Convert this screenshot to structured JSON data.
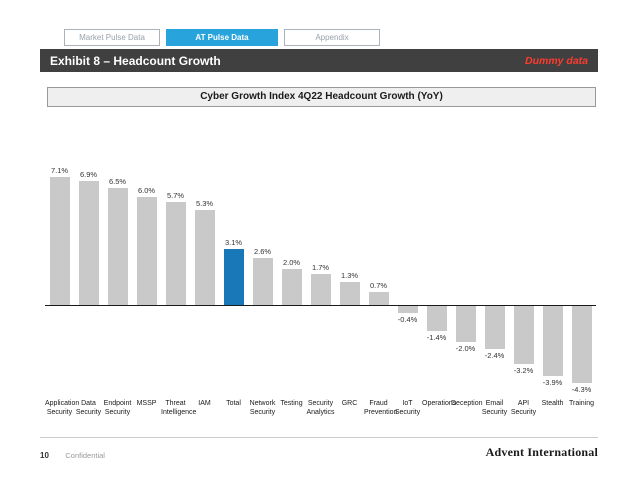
{
  "tabs": [
    {
      "label": "Market Pulse Data",
      "active": false
    },
    {
      "label": "AT Pulse Data",
      "active": true
    },
    {
      "label": "Appendix",
      "active": false
    }
  ],
  "header": {
    "title": "Exhibit 8 – Headcount Growth",
    "watermark": "Dummy data"
  },
  "chart_title": "Cyber Growth Index 4Q22 Headcount Growth (YoY)",
  "chart_data": {
    "type": "bar",
    "title": "Cyber Growth Index 4Q22 Headcount Growth (YoY)",
    "categories": [
      "Application Security",
      "Data Security",
      "Endpoint Security",
      "MSSP",
      "Threat Intelligence",
      "IAM",
      "Total",
      "Network Security",
      "Testing",
      "Security Analytics",
      "GRC",
      "Fraud Prevention",
      "IoT Security",
      "Operations",
      "Deception",
      "Email Security",
      "API Security",
      "Stealth",
      "Training"
    ],
    "values": [
      7.1,
      6.9,
      6.5,
      6.0,
      5.7,
      5.3,
      3.1,
      2.6,
      2.0,
      1.7,
      1.3,
      0.7,
      -0.4,
      -1.4,
      -2.0,
      -2.4,
      -3.2,
      -3.9,
      -4.3
    ],
    "value_format": "percent",
    "highlight_category": "Total",
    "bar_color": "#c9c9c9",
    "highlight_color": "#1878b8",
    "xlabel": "",
    "ylabel": "",
    "ylim": [
      -5,
      8
    ],
    "grid": false,
    "legend": false
  },
  "footer": {
    "page_number": "10",
    "confidential": "Confidential",
    "brand": "Advent International"
  },
  "colors": {
    "tab_active_blue": "#29a3db",
    "header_bar": "#404040",
    "watermark_red": "#ff3b30",
    "axis_line": "#1a1a1a"
  }
}
